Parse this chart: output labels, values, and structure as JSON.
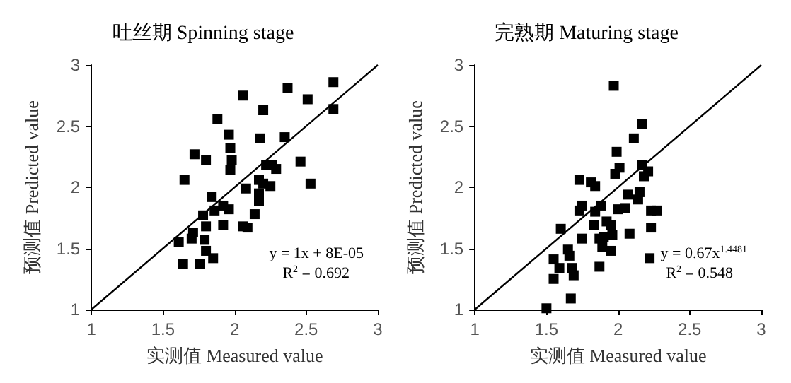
{
  "chart_data": [
    {
      "type": "scatter",
      "title": "吐丝期 Spinning stage",
      "xlabel": "实测值 Measured value",
      "ylabel": "预测值 Predicted value",
      "xlim": [
        1,
        3
      ],
      "ylim": [
        1,
        3
      ],
      "xticks": [
        1,
        1.5,
        2,
        2.5,
        3
      ],
      "yticks": [
        1,
        1.5,
        2,
        2.5,
        3
      ],
      "grid": false,
      "annotations": [
        "y = 1x + 8E-05",
        "R$^{2}$ = 0.692"
      ],
      "series": [
        {
          "marker": "square",
          "color": "#000000",
          "x": [
            1.65,
            1.72,
            1.8,
            1.88,
            1.96,
            1.97,
            1.98,
            1.97,
            2.06,
            2.2,
            2.37,
            2.69,
            2.51,
            2.69,
            2.35,
            2.18,
            2.46,
            2.53,
            2.22,
            2.26,
            2.29,
            2.25,
            2.2,
            2.17,
            2.17,
            2.17,
            2.08,
            2.14,
            2.06,
            2.09,
            1.96,
            1.92,
            1.84,
            1.86,
            1.92,
            1.78,
            1.8,
            1.79,
            1.8,
            1.85,
            1.71,
            1.7,
            1.61,
            1.64,
            1.76
          ],
          "values": [
            2.06,
            2.27,
            2.22,
            2.56,
            2.43,
            2.32,
            2.22,
            2.14,
            2.75,
            2.63,
            2.81,
            2.86,
            2.72,
            2.64,
            2.41,
            2.4,
            2.21,
            2.03,
            2.18,
            2.18,
            2.15,
            2.01,
            2.03,
            2.06,
            1.95,
            1.89,
            1.99,
            1.78,
            1.68,
            1.67,
            1.82,
            1.85,
            1.92,
            1.81,
            1.69,
            1.77,
            1.68,
            1.57,
            1.48,
            1.42,
            1.63,
            1.58,
            1.55,
            1.37,
            1.37
          ]
        },
        {
          "type": "line",
          "color": "#000000",
          "x": [
            1,
            3
          ],
          "values": [
            1,
            3
          ]
        }
      ]
    },
    {
      "type": "scatter",
      "title": "完熟期 Maturing stage",
      "xlabel": "实测值 Measured value",
      "ylabel": "预测值 Predicted value",
      "xlim": [
        1,
        3
      ],
      "ylim": [
        1,
        3
      ],
      "xticks": [
        1,
        1.5,
        2,
        2.5,
        3
      ],
      "yticks": [
        1,
        1.5,
        2,
        2.5,
        3
      ],
      "grid": false,
      "annotations": [
        "y = 0.67x$^{1.4481}$",
        "R$^{2}$ = 0.548"
      ],
      "series": [
        {
          "marker": "square",
          "color": "#000000",
          "x": [
            1.97,
            2.17,
            2.11,
            1.99,
            2.01,
            1.98,
            2.17,
            2.21,
            2.18,
            1.73,
            1.81,
            1.84,
            2.15,
            2.07,
            2.14,
            1.75,
            1.73,
            1.88,
            1.84,
            2.0,
            2.05,
            2.23,
            2.27,
            1.83,
            1.92,
            1.95,
            1.96,
            1.9,
            1.87,
            1.89,
            1.95,
            2.07,
            2.08,
            2.23,
            2.22,
            1.6,
            1.75,
            1.65,
            1.66,
            1.55,
            1.59,
            1.68,
            1.69,
            1.55,
            1.87,
            1.67,
            1.5
          ],
          "values": [
            2.83,
            2.52,
            2.4,
            2.29,
            2.16,
            2.11,
            2.18,
            2.13,
            2.09,
            2.06,
            2.04,
            2.01,
            1.96,
            1.94,
            1.9,
            1.85,
            1.81,
            1.85,
            1.8,
            1.82,
            1.83,
            1.81,
            1.81,
            1.69,
            1.72,
            1.69,
            1.61,
            1.59,
            1.58,
            1.51,
            1.48,
            null,
            1.62,
            1.67,
            1.42,
            1.66,
            1.58,
            1.49,
            1.44,
            1.41,
            1.34,
            1.34,
            1.28,
            1.25,
            1.35,
            1.09,
            1.01
          ]
        },
        {
          "type": "line",
          "color": "#000000",
          "x": [
            1,
            3
          ],
          "values": [
            1,
            3
          ]
        }
      ]
    }
  ]
}
